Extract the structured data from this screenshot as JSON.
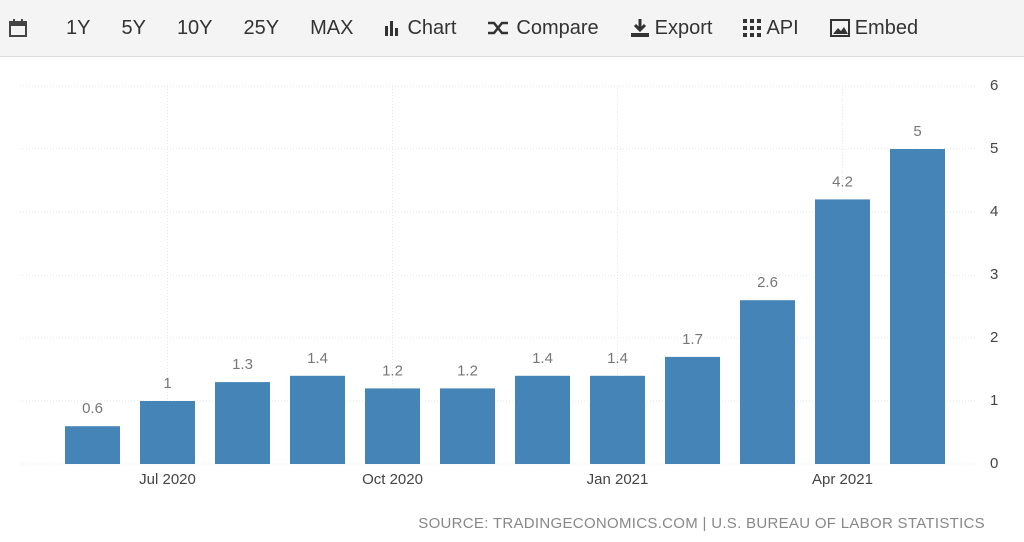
{
  "toolbar": {
    "items": [
      "1Y",
      "5Y",
      "10Y",
      "25Y",
      "MAX",
      "Chart",
      "Compare",
      "Export",
      "API",
      "Embed"
    ]
  },
  "chart_data": {
    "type": "bar",
    "categories": [
      null,
      "Jul 2020",
      null,
      null,
      "Oct 2020",
      null,
      null,
      "Jan 2021",
      null,
      null,
      "Apr 2021",
      null
    ],
    "values": [
      0.6,
      1,
      1.3,
      1.4,
      1.2,
      1.2,
      1.4,
      1.4,
      1.7,
      2.6,
      4.2,
      5
    ],
    "color": "#4584b6",
    "ylim": [
      0,
      6
    ],
    "yticks": [
      0,
      1,
      2,
      3,
      4,
      5,
      6
    ],
    "grid": true,
    "source": "SOURCE: TRADINGECONOMICS.COM | U.S. BUREAU OF LABOR STATISTICS"
  }
}
